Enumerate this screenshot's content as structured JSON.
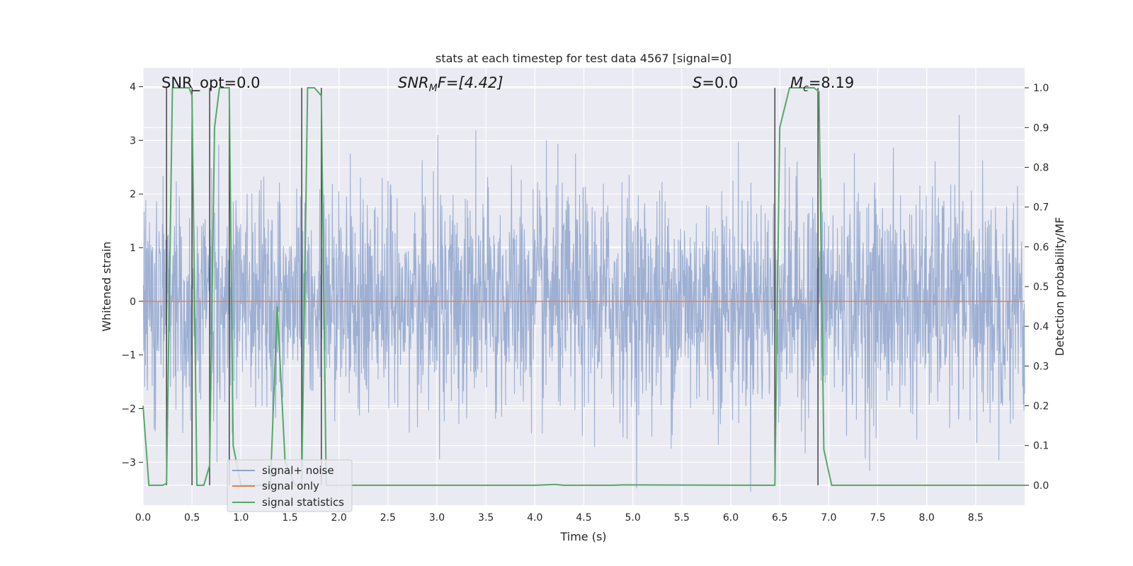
{
  "chart_data": {
    "type": "line",
    "title": "stats at each timestep for test data 4567 [signal=0]",
    "xlabel": "Time (s)",
    "ylabel_left": "Whitened strain",
    "ylabel_right": "Detection probability/MF",
    "xlim": [
      0.0,
      9.0
    ],
    "ylim_left": [
      -3.8,
      4.35
    ],
    "ylim_right": [
      -0.05,
      1.05
    ],
    "x_ticks": [
      "0.0",
      "0.5",
      "1.0",
      "1.5",
      "2.0",
      "2.5",
      "3.0",
      "3.5",
      "4.0",
      "4.5",
      "5.0",
      "5.5",
      "6.0",
      "6.5",
      "7.0",
      "7.5",
      "8.0",
      "8.5"
    ],
    "x_tick_values": [
      0.0,
      0.5,
      1.0,
      1.5,
      2.0,
      2.5,
      3.0,
      3.5,
      4.0,
      4.5,
      5.0,
      5.5,
      6.0,
      6.5,
      7.0,
      7.5,
      8.0,
      8.5
    ],
    "y_ticks_left": [
      "4",
      "3",
      "2",
      "1",
      "0",
      "−1",
      "−2",
      "−3"
    ],
    "y_tick_values_left": [
      4,
      3,
      2,
      1,
      0,
      -1,
      -2,
      -3
    ],
    "y_ticks_right": [
      "1.0",
      "0.9",
      "0.8",
      "0.7",
      "0.6",
      "0.5",
      "0.4",
      "0.3",
      "0.2",
      "0.1",
      "0.0"
    ],
    "y_tick_values_right": [
      1.0,
      0.9,
      0.8,
      0.7,
      0.6,
      0.5,
      0.4,
      0.3,
      0.2,
      0.1,
      0.0
    ],
    "grid": true,
    "legend_position": "lower-left",
    "annotations": {
      "snr_opt": "SNR_opt=0.0",
      "snr_mf": "SNR",
      "snr_mf_sub": "M",
      "snr_mf_tail": "F=[4.42]",
      "s_var": "S",
      "s_tail": "=0.0",
      "mc_var": "M",
      "mc_sub": "c",
      "mc_tail": "=8.19"
    },
    "series": [
      {
        "name": "signal+ noise",
        "color": "#8fa4cc",
        "axis": "left",
        "description": "noisy whitened strain fluctuating roughly between -3.6 and 3.6",
        "amplitude_range": [
          -3.6,
          3.6
        ]
      },
      {
        "name": "signal only",
        "color": "#dd8452",
        "axis": "left",
        "x": [
          0.0,
          9.0
        ],
        "y": [
          0.0,
          0.0
        ]
      },
      {
        "name": "signal statistics",
        "color": "#55a868",
        "axis": "right",
        "x": [
          0.0,
          0.06,
          0.2,
          0.24,
          0.3,
          0.47,
          0.5,
          0.55,
          0.62,
          0.68,
          0.73,
          0.78,
          0.88,
          0.92,
          1.0,
          1.3,
          1.37,
          1.45,
          1.55,
          1.62,
          1.68,
          1.75,
          1.82,
          1.87,
          2.0,
          3.5,
          4.0,
          4.2,
          4.3,
          4.8,
          4.9,
          6.4,
          6.45,
          6.5,
          6.6,
          6.85,
          6.9,
          6.95,
          7.03,
          7.5,
          8.0,
          8.5,
          9.0
        ],
        "y": [
          0.2,
          0.0,
          0.0,
          0.005,
          1.0,
          1.0,
          0.98,
          0.0,
          0.0,
          0.05,
          0.9,
          1.0,
          1.0,
          0.1,
          0.0,
          0.0,
          0.45,
          0.06,
          0.0,
          0.0,
          1.0,
          1.0,
          0.98,
          0.0,
          0.0,
          0.0,
          0.0,
          0.002,
          0.0,
          0.0,
          0.001,
          0.0,
          0.0,
          0.9,
          1.0,
          1.0,
          0.99,
          0.09,
          0.0,
          0.0,
          0.0,
          0.0,
          0.0
        ]
      }
    ],
    "threshold_lines": {
      "color": "#444444",
      "x": [
        0.24,
        0.5,
        0.68,
        0.88,
        1.62,
        1.82,
        6.45,
        6.89
      ]
    }
  }
}
